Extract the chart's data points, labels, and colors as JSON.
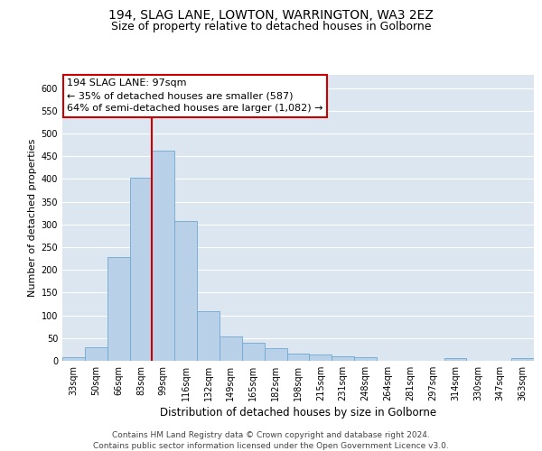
{
  "title1": "194, SLAG LANE, LOWTON, WARRINGTON, WA3 2EZ",
  "title2": "Size of property relative to detached houses in Golborne",
  "xlabel": "Distribution of detached houses by size in Golborne",
  "ylabel": "Number of detached properties",
  "categories": [
    "33sqm",
    "50sqm",
    "66sqm",
    "83sqm",
    "99sqm",
    "116sqm",
    "132sqm",
    "149sqm",
    "165sqm",
    "182sqm",
    "198sqm",
    "215sqm",
    "231sqm",
    "248sqm",
    "264sqm",
    "281sqm",
    "297sqm",
    "314sqm",
    "330sqm",
    "347sqm",
    "363sqm"
  ],
  "values": [
    7,
    30,
    228,
    403,
    463,
    307,
    110,
    54,
    40,
    27,
    15,
    13,
    10,
    7,
    0,
    0,
    0,
    5,
    0,
    0,
    5
  ],
  "bar_color": "#b8d0e8",
  "bar_edge_color": "#6fa8d0",
  "background_color": "#dce6f0",
  "grid_color": "#ffffff",
  "vline_x": 3.5,
  "annotation_text": "194 SLAG LANE: 97sqm\n← 35% of detached houses are smaller (587)\n64% of semi-detached houses are larger (1,082) →",
  "annotation_box_facecolor": "#ffffff",
  "annotation_box_edgecolor": "#cc0000",
  "vline_color": "#cc0000",
  "ylim": [
    0,
    630
  ],
  "yticks": [
    0,
    50,
    100,
    150,
    200,
    250,
    300,
    350,
    400,
    450,
    500,
    550,
    600
  ],
  "footer1": "Contains HM Land Registry data © Crown copyright and database right 2024.",
  "footer2": "Contains public sector information licensed under the Open Government Licence v3.0.",
  "title1_fontsize": 10,
  "title2_fontsize": 9,
  "xlabel_fontsize": 8.5,
  "ylabel_fontsize": 8,
  "tick_fontsize": 7,
  "annotation_fontsize": 8,
  "footer_fontsize": 6.5
}
